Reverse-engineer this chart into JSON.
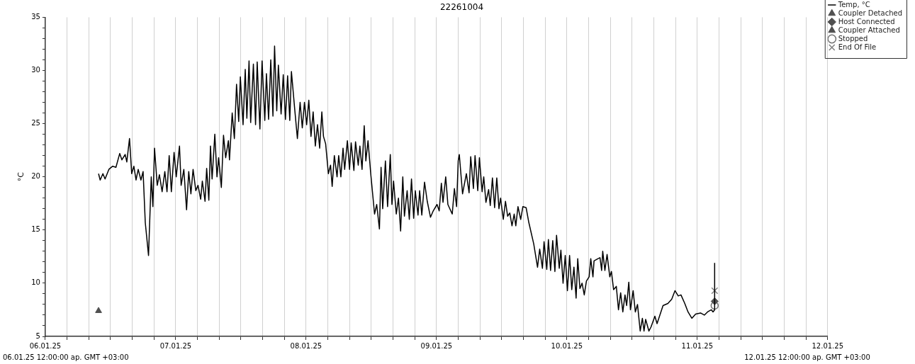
{
  "chart_data": {
    "type": "line",
    "title": "22261004",
    "ylabel": "°C",
    "xlim": [
      "--01-06T00:00",
      "--01-12T00:00"
    ],
    "xticks": [
      {
        "value": "--01-06T00:00",
        "label": "06.01.25"
      },
      {
        "value": "--01-06T04:00",
        "label": null
      },
      {
        "value": "--01-06T08:00",
        "label": null
      },
      {
        "value": "--01-06T12:00",
        "label": null
      },
      {
        "value": "--01-06T16:00",
        "label": null
      },
      {
        "value": "--01-06T20:00",
        "label": null
      },
      {
        "value": "--01-07T00:00",
        "label": "07.01.25"
      },
      {
        "value": "--01-07T04:00",
        "label": null
      },
      {
        "value": "--01-07T08:00",
        "label": null
      },
      {
        "value": "--01-07T12:00",
        "label": null
      },
      {
        "value": "--01-07T16:00",
        "label": null
      },
      {
        "value": "--01-07T20:00",
        "label": null
      },
      {
        "value": "--01-08T00:00",
        "label": "08.01.25"
      },
      {
        "value": "--01-08T04:00",
        "label": null
      },
      {
        "value": "--01-08T08:00",
        "label": null
      },
      {
        "value": "--01-08T12:00",
        "label": null
      },
      {
        "value": "--01-08T16:00",
        "label": null
      },
      {
        "value": "--01-08T20:00",
        "label": null
      },
      {
        "value": "--01-09T00:00",
        "label": "09.01.25"
      },
      {
        "value": "--01-09T04:00",
        "label": null
      },
      {
        "value": "--01-09T08:00",
        "label": null
      },
      {
        "value": "--01-09T12:00",
        "label": null
      },
      {
        "value": "--01-09T16:00",
        "label": null
      },
      {
        "value": "--01-09T20:00",
        "label": null
      },
      {
        "value": "--01-10T00:00",
        "label": "10.01.25"
      },
      {
        "value": "--01-10T04:00",
        "label": null
      },
      {
        "value": "--01-10T08:00",
        "label": null
      },
      {
        "value": "--01-10T12:00",
        "label": null
      },
      {
        "value": "--01-10T16:00",
        "label": null
      },
      {
        "value": "--01-10T20:00",
        "label": null
      },
      {
        "value": "--01-11T00:00",
        "label": "11.01.25"
      },
      {
        "value": "--01-11T04:00",
        "label": null
      },
      {
        "value": "--01-11T08:00",
        "label": null
      },
      {
        "value": "--01-11T12:00",
        "label": null
      },
      {
        "value": "--01-11T16:00",
        "label": null
      },
      {
        "value": "--01-11T20:00",
        "label": null
      },
      {
        "value": "--01-12T00:00",
        "label": "12.01.25"
      }
    ],
    "ylim": [
      5,
      35
    ],
    "yticks": [
      5,
      {
        "value": 6,
        "label": null
      },
      {
        "value": 7,
        "label": null
      },
      {
        "value": 8,
        "label": null
      },
      {
        "value": 9,
        "label": null
      },
      10,
      {
        "value": 11,
        "label": null
      },
      {
        "value": 12,
        "label": null
      },
      {
        "value": 13,
        "label": null
      },
      {
        "value": 14,
        "label": null
      },
      15,
      {
        "value": 16,
        "label": null
      },
      {
        "value": 17,
        "label": null
      },
      {
        "value": 18,
        "label": null
      },
      {
        "value": 19,
        "label": null
      },
      20,
      {
        "value": 21,
        "label": null
      },
      {
        "value": 22,
        "label": null
      },
      {
        "value": 23,
        "label": null
      },
      {
        "value": 24,
        "label": null
      },
      25,
      {
        "value": 26,
        "label": null
      },
      {
        "value": 27,
        "label": null
      },
      {
        "value": 28,
        "label": null
      },
      {
        "value": 29,
        "label": null
      },
      30,
      {
        "value": 31,
        "label": null
      },
      {
        "value": 32,
        "label": null
      },
      {
        "value": 33,
        "label": null
      },
      {
        "value": 34,
        "label": null
      },
      35
    ],
    "grid": "x",
    "legend": "top right",
    "annotations": [
      "06.01.25 12:00:00 ap. GMT +03:00",
      "12.01.25 12:00:00 ap. GMT +03:00"
    ],
    "series": [
      {
        "name": "Temp, °C",
        "type": "line",
        "color": "#000000",
        "marker": "none",
        "x": [
          "--01-06T09:48",
          "--01-06T10:06",
          "--01-06T10:36",
          "--01-06T11:00",
          "--01-06T11:42",
          "--01-06T12:24",
          "--01-06T13:00",
          "--01-06T13:42",
          "--01-06T14:06",
          "--01-06T14:42",
          "--01-06T15:00",
          "--01-06T15:30",
          "--01-06T15:54",
          "--01-06T16:18",
          "--01-06T16:42",
          "--01-06T17:06",
          "--01-06T17:36",
          "--01-06T18:00",
          "--01-06T18:24",
          "--01-06T19:00",
          "--01-06T19:30",
          "--01-06T19:48",
          "--01-06T20:06",
          "--01-06T20:36",
          "--01-06T21:00",
          "--01-06T21:30",
          "--01-06T22:00",
          "--01-06T22:24",
          "--01-06T22:48",
          "--01-06T23:12",
          "--01-06T23:42",
          "--01-07T00:06",
          "--01-07T00:42",
          "--01-07T01:00",
          "--01-07T01:30",
          "--01-07T02:00",
          "--01-07T02:24",
          "--01-07T02:48",
          "--01-07T03:12",
          "--01-07T03:42",
          "--01-07T04:06",
          "--01-07T04:36",
          "--01-07T04:54",
          "--01-07T05:24",
          "--01-07T05:42",
          "--01-07T06:06",
          "--01-07T06:24",
          "--01-07T06:42",
          "--01-07T07:12",
          "--01-07T07:36",
          "--01-07T07:54",
          "--01-07T08:24",
          "--01-07T08:48",
          "--01-07T09:12",
          "--01-07T09:42",
          "--01-07T09:54",
          "--01-07T10:24",
          "--01-07T10:48",
          "--01-07T11:12",
          "--01-07T11:36",
          "--01-07T11:54",
          "--01-07T12:24",
          "--01-07T12:48",
          "--01-07T13:06",
          "--01-07T13:30",
          "--01-07T13:48",
          "--01-07T14:18",
          "--01-07T14:42",
          "--01-07T15:00",
          "--01-07T15:30",
          "--01-07T15:54",
          "--01-07T16:24",
          "--01-07T16:42",
          "--01-07T17:06",
          "--01-07T17:30",
          "--01-07T17:54",
          "--01-07T18:12",
          "--01-07T18:36",
          "--01-07T18:54",
          "--01-07T19:24",
          "--01-07T19:48",
          "--01-07T20:12",
          "--01-07T20:36",
          "--01-07T21:00",
          "--01-07T21:18",
          "--01-07T21:54",
          "--01-07T22:24",
          "--01-07T22:54",
          "--01-07T23:18",
          "--01-07T23:42",
          "--01-08T00:06",
          "--01-08T00:30",
          "--01-08T00:54",
          "--01-08T01:18",
          "--01-08T01:42",
          "--01-08T02:06",
          "--01-08T02:30",
          "--01-08T02:54",
          "--01-08T03:12",
          "--01-08T03:36",
          "--01-08T04:06",
          "--01-08T04:30",
          "--01-08T04:48",
          "--01-08T05:12",
          "--01-08T05:42",
          "--01-08T06:00",
          "--01-08T06:24",
          "--01-08T06:48",
          "--01-08T07:06",
          "--01-08T07:36",
          "--01-08T08:00",
          "--01-08T08:18",
          "--01-08T08:48",
          "--01-08T09:06",
          "--01-08T09:36",
          "--01-08T09:54",
          "--01-08T10:18",
          "--01-08T10:42",
          "--01-08T11:00",
          "--01-08T11:24",
          "--01-08T11:54",
          "--01-08T12:36",
          "--01-08T13:00",
          "--01-08T13:30",
          "--01-08T13:48",
          "--01-08T14:06",
          "--01-08T14:36",
          "--01-08T15:00",
          "--01-08T15:30",
          "--01-08T15:48",
          "--01-08T16:06",
          "--01-08T16:36",
          "--01-08T17:00",
          "--01-08T17:24",
          "--01-08T17:48",
          "--01-08T18:06",
          "--01-08T18:36",
          "--01-08T19:00",
          "--01-08T19:24",
          "--01-08T19:48",
          "--01-08T20:06",
          "--01-08T20:36",
          "--01-08T20:54",
          "--01-08T21:18",
          "--01-08T21:48",
          "--01-08T22:18",
          "--01-08T22:54",
          "--01-08T23:24",
          "--01-09T00:06",
          "--01-09T00:30",
          "--01-09T00:54",
          "--01-09T01:12",
          "--01-09T01:42",
          "--01-09T02:06",
          "--01-09T02:54",
          "--01-09T03:18",
          "--01-09T03:42",
          "--01-09T04:00",
          "--01-09T04:12",
          "--01-09T04:48",
          "--01-09T05:30",
          "--01-09T06:00",
          "--01-09T06:18",
          "--01-09T06:48",
          "--01-09T07:06",
          "--01-09T07:36",
          "--01-09T07:54",
          "--01-09T08:24",
          "--01-09T08:42",
          "--01-09T09:06",
          "--01-09T09:36",
          "--01-09T09:54",
          "--01-09T10:18",
          "--01-09T10:42",
          "--01-09T11:06",
          "--01-09T11:30",
          "--01-09T11:48",
          "--01-09T12:18",
          "--01-09T12:42",
          "--01-09T13:06",
          "--01-09T13:30",
          "--01-09T13:54",
          "--01-09T14:18",
          "--01-09T14:36",
          "--01-09T15:00",
          "--01-09T15:30",
          "--01-09T15:54",
          "--01-09T16:30",
          "--01-09T17:00",
          "--01-09T17:54",
          "--01-09T18:36",
          "--01-09T19:00",
          "--01-09T19:30",
          "--01-09T19:48",
          "--01-09T20:18",
          "--01-09T20:36",
          "--01-09T21:00",
          "--01-09T21:24",
          "--01-09T21:48",
          "--01-09T22:06",
          "--01-09T22:36",
          "--01-09T22:54",
          "--01-09T23:18",
          "--01-09T23:42",
          "--01-10T00:06",
          "--01-10T00:30",
          "--01-10T00:54",
          "--01-10T01:18",
          "--01-10T01:42",
          "--01-10T02:00",
          "--01-10T02:24",
          "--01-10T02:48",
          "--01-10T03:12",
          "--01-10T03:36",
          "--01-10T04:06",
          "--01-10T04:24",
          "--01-10T04:48",
          "--01-10T05:00",
          "--01-10T05:42",
          "--01-10T06:06",
          "--01-10T06:24",
          "--01-10T06:36",
          "--01-10T07:00",
          "--01-10T07:24",
          "--01-10T07:54",
          "--01-10T08:12",
          "--01-10T08:36",
          "--01-10T09:06",
          "--01-10T09:30",
          "--01-10T09:54",
          "--01-10T10:18",
          "--01-10T10:42",
          "--01-10T11:00",
          "--01-10T11:24",
          "--01-10T11:42",
          "--01-10T12:12",
          "--01-10T12:36",
          "--01-10T13:00",
          "--01-10T13:30",
          "--01-10T13:54",
          "--01-10T14:12",
          "--01-10T14:30",
          "--01-10T15:06",
          "--01-10T15:30",
          "--01-10T16:12",
          "--01-10T16:36",
          "--01-10T17:42",
          "--01-10T18:36",
          "--01-10T19:18",
          "--01-10T19:54",
          "--01-10T20:30",
          "--01-10T21:00",
          "--01-10T21:42",
          "--01-10T22:18",
          "--01-10T23:00",
          "--01-10T23:42",
          "--01-11T00:36",
          "--01-11T01:18",
          "--01-11T01:54",
          "--01-11T02:36",
          "--01-11T02:54",
          "--01-11T03:12",
          "--01-11T03:12"
        ],
        "values": [
          20.3,
          19.7,
          20.3,
          19.8,
          20.7,
          21.0,
          20.9,
          22.2,
          21.6,
          22.1,
          21.4,
          23.6,
          20.3,
          21.0,
          19.7,
          20.7,
          19.7,
          20.5,
          15.7,
          12.6,
          20.0,
          17.2,
          22.7,
          19.2,
          20.2,
          18.6,
          20.5,
          18.6,
          22.0,
          18.6,
          22.3,
          20.0,
          22.9,
          19.2,
          20.7,
          16.9,
          20.5,
          18.4,
          20.7,
          18.7,
          19.2,
          17.9,
          19.6,
          17.7,
          20.8,
          17.8,
          22.9,
          19.8,
          24.0,
          20.0,
          21.8,
          19.0,
          23.9,
          21.8,
          23.4,
          21.6,
          26.0,
          23.6,
          28.7,
          25.2,
          29.4,
          24.9,
          30.1,
          25.5,
          30.9,
          25.1,
          30.6,
          24.9,
          30.8,
          24.5,
          30.9,
          25.3,
          29.7,
          25.4,
          31.0,
          25.7,
          32.3,
          26.2,
          30.5,
          25.9,
          29.6,
          25.4,
          29.5,
          25.3,
          29.9,
          26.4,
          23.6,
          27.0,
          24.6,
          27.0,
          24.9,
          27.2,
          23.8,
          26.1,
          22.9,
          24.9,
          22.7,
          26.1,
          23.8,
          23.1,
          20.3,
          21.1,
          19.1,
          22.0,
          20.0,
          22.0,
          20.0,
          22.7,
          20.7,
          23.4,
          20.7,
          23.2,
          20.6,
          23.3,
          21.1,
          22.9,
          20.7,
          24.8,
          21.5,
          23.4,
          20.3,
          16.5,
          17.4,
          15.1,
          20.9,
          17.0,
          21.5,
          17.2,
          22.1,
          17.4,
          19.6,
          16.5,
          18.0,
          14.9,
          20.0,
          16.3,
          18.7,
          16.0,
          19.8,
          16.1,
          18.7,
          16.4,
          18.7,
          16.4,
          19.5,
          17.7,
          16.2,
          16.8,
          17.4,
          16.8,
          19.4,
          17.6,
          20.0,
          17.4,
          16.5,
          18.9,
          17.2,
          21.5,
          22.1,
          18.4,
          20.3,
          18.5,
          21.9,
          18.9,
          22.0,
          18.7,
          21.8,
          18.6,
          20.0,
          17.6,
          18.8,
          17.3,
          19.9,
          17.1,
          19.9,
          17.0,
          18.0,
          16.0,
          17.7,
          16.3,
          16.6,
          15.4,
          16.5,
          15.4,
          17.2,
          16.0,
          17.2,
          17.1,
          15.7,
          13.7,
          11.5,
          13.2,
          11.4,
          13.9,
          11.3,
          14.1,
          11.2,
          14.0,
          11.1,
          14.5,
          11.4,
          13.1,
          10.0,
          12.6,
          9.3,
          12.6,
          9.4,
          11.5,
          8.6,
          12.3,
          9.5,
          10.0,
          8.9,
          10.2,
          10.6,
          12.3,
          10.6,
          12.1,
          12.3,
          12.4,
          11.2,
          13.0,
          11.2,
          12.7,
          10.6,
          11.1,
          9.4,
          9.7,
          7.5,
          9.1,
          7.3,
          8.9,
          7.9,
          10.1,
          7.5,
          9.3,
          7.3,
          8.0,
          5.5,
          6.7,
          5.5,
          6.6,
          5.5,
          5.9,
          6.9,
          6.2,
          7.9,
          8.1,
          8.5,
          9.3,
          8.8,
          8.9,
          8.1,
          7.3,
          6.7,
          7.1,
          7.2,
          7.0,
          7.3,
          7.5,
          7.3,
          7.5,
          11.9
        ]
      },
      {
        "name": "Coupler Detached",
        "type": "scatter",
        "color": "#505050",
        "marker": "triangle",
        "x": [
          "--01-06T09:48"
        ],
        "values": [
          7.4
        ]
      },
      {
        "name": "Host Connected",
        "type": "scatter",
        "color": "#505050",
        "marker": "diamond",
        "x": [
          "--01-11T03:12"
        ],
        "values": [
          8.3
        ]
      },
      {
        "name": "Coupler Attached",
        "type": "scatter",
        "color": "#505050",
        "marker": "triangle"
      },
      {
        "name": "Stopped",
        "type": "scatter",
        "color": "#707070",
        "marker": "circle",
        "x": [
          "--01-11T03:12"
        ],
        "values": [
          7.9
        ]
      },
      {
        "name": "End Of File",
        "type": "scatter",
        "color": "#808080",
        "marker": "cross",
        "x": [
          "--01-11T03:12"
        ],
        "values": [
          9.3
        ]
      }
    ]
  }
}
